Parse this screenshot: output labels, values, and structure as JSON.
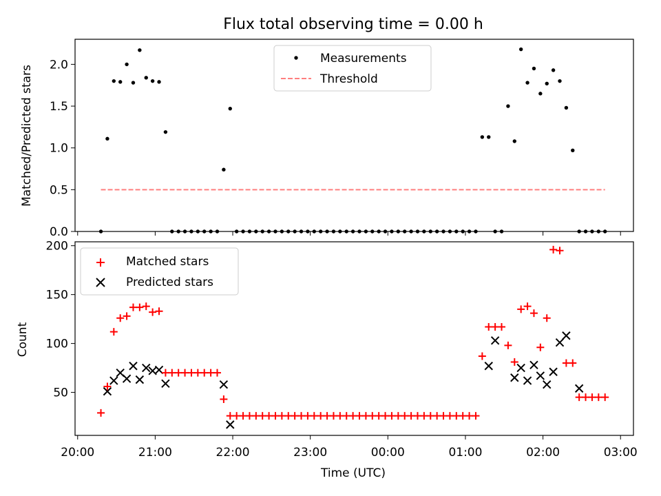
{
  "chart_data": [
    {
      "type": "scatter",
      "title": "Flux total observing time = 0.00 h",
      "xlabel": "",
      "ylabel": "Matched/Predicted stars",
      "ylim": [
        0,
        2.3
      ],
      "yticks": [
        0.0,
        0.5,
        1.0,
        1.5,
        2.0
      ],
      "ytick_labels": [
        "0.0",
        "0.5",
        "1.0",
        "1.5",
        "2.0"
      ],
      "legend_position": "top-center",
      "threshold": {
        "name": "Threshold",
        "value": 0.5,
        "x_start": "20:18",
        "x_end": "02:48",
        "color": "#ff7f7f"
      },
      "series": [
        {
          "name": "Measurements",
          "marker": "dot",
          "color": "#000000",
          "x": [
            "20:18",
            "20:23",
            "20:28",
            "20:33",
            "20:38",
            "20:43",
            "20:48",
            "20:53",
            "20:58",
            "21:03",
            "21:08",
            "21:13",
            "21:18",
            "21:23",
            "21:28",
            "21:33",
            "21:38",
            "21:43",
            "21:48",
            "21:53",
            "21:58",
            "22:03",
            "22:08",
            "22:13",
            "22:18",
            "22:23",
            "22:28",
            "22:33",
            "22:38",
            "22:43",
            "22:48",
            "22:53",
            "22:58",
            "23:03",
            "23:08",
            "23:13",
            "23:18",
            "23:23",
            "23:28",
            "23:33",
            "23:38",
            "23:43",
            "23:48",
            "23:53",
            "23:58",
            "00:03",
            "00:08",
            "00:13",
            "00:18",
            "00:23",
            "00:28",
            "00:33",
            "00:38",
            "00:43",
            "00:48",
            "00:53",
            "00:58",
            "01:03",
            "01:08",
            "01:13",
            "01:18",
            "01:23",
            "01:28",
            "01:33",
            "01:38",
            "01:43",
            "01:48",
            "01:53",
            "01:58",
            "02:03",
            "02:08",
            "02:13",
            "02:18",
            "02:23",
            "02:28",
            "02:33",
            "02:38",
            "02:43",
            "02:48"
          ],
          "y": [
            0.0,
            1.11,
            1.8,
            1.79,
            2.0,
            1.78,
            2.17,
            1.84,
            1.8,
            1.79,
            1.19,
            0.0,
            0.0,
            0.0,
            0.0,
            0.0,
            0.0,
            0.0,
            0.0,
            0.74,
            1.47,
            0.0,
            0.0,
            0.0,
            0.0,
            0.0,
            0.0,
            0.0,
            0.0,
            0.0,
            0.0,
            0.0,
            0.0,
            0.0,
            0.0,
            0.0,
            0.0,
            0.0,
            0.0,
            0.0,
            0.0,
            0.0,
            0.0,
            0.0,
            0.0,
            0.0,
            0.0,
            0.0,
            0.0,
            0.0,
            0.0,
            0.0,
            0.0,
            0.0,
            0.0,
            0.0,
            0.0,
            0.0,
            0.0,
            1.13,
            1.13,
            0.0,
            0.0,
            1.5,
            1.08,
            2.18,
            1.78,
            1.95,
            1.65,
            1.77,
            1.93,
            1.8,
            1.48,
            0.97,
            0.0,
            0.0,
            0.0,
            0.0,
            0.0
          ]
        }
      ]
    },
    {
      "type": "scatter",
      "title": "",
      "xlabel": "Time (UTC)",
      "ylabel": "Count",
      "ylim": [
        6,
        204
      ],
      "yticks": [
        50,
        100,
        150,
        200
      ],
      "ytick_labels": [
        "50",
        "100",
        "150",
        "200"
      ],
      "xlim": [
        "19:58",
        "03:10"
      ],
      "xticks": [
        "20:00",
        "21:00",
        "22:00",
        "23:00",
        "00:00",
        "01:00",
        "02:00",
        "03:00"
      ],
      "legend_position": "top-left",
      "series": [
        {
          "name": "Matched stars",
          "marker": "plus",
          "color": "#ff0000",
          "x": [
            "20:18",
            "20:23",
            "20:28",
            "20:33",
            "20:38",
            "20:43",
            "20:48",
            "20:53",
            "20:58",
            "21:03",
            "21:08",
            "21:13",
            "21:18",
            "21:23",
            "21:28",
            "21:33",
            "21:38",
            "21:43",
            "21:48",
            "21:53",
            "21:58",
            "22:03",
            "22:08",
            "22:13",
            "22:18",
            "22:23",
            "22:28",
            "22:33",
            "22:38",
            "22:43",
            "22:48",
            "22:53",
            "22:58",
            "23:03",
            "23:08",
            "23:13",
            "23:18",
            "23:23",
            "23:28",
            "23:33",
            "23:38",
            "23:43",
            "23:48",
            "23:53",
            "23:58",
            "00:03",
            "00:08",
            "00:13",
            "00:18",
            "00:23",
            "00:28",
            "00:33",
            "00:38",
            "00:43",
            "00:48",
            "00:53",
            "00:58",
            "01:03",
            "01:08",
            "01:13",
            "01:18",
            "01:23",
            "01:28",
            "01:33",
            "01:38",
            "01:43",
            "01:48",
            "01:53",
            "01:58",
            "02:03",
            "02:08",
            "02:13",
            "02:18",
            "02:23",
            "02:28",
            "02:33",
            "02:38",
            "02:43",
            "02:48"
          ],
          "y": [
            29,
            56,
            112,
            126,
            128,
            137,
            137,
            138,
            132,
            133,
            70,
            70,
            70,
            70,
            70,
            70,
            70,
            70,
            70,
            43,
            26,
            26,
            26,
            26,
            26,
            26,
            26,
            26,
            26,
            26,
            26,
            26,
            26,
            26,
            26,
            26,
            26,
            26,
            26,
            26,
            26,
            26,
            26,
            26,
            26,
            26,
            26,
            26,
            26,
            26,
            26,
            26,
            26,
            26,
            26,
            26,
            26,
            26,
            26,
            87,
            117,
            117,
            117,
            98,
            81,
            135,
            138,
            131,
            96,
            126,
            196,
            195,
            80,
            80,
            45,
            45,
            45,
            45,
            45
          ]
        },
        {
          "name": "Predicted stars",
          "marker": "x",
          "color": "#000000",
          "x": [
            "20:23",
            "20:28",
            "20:33",
            "20:38",
            "20:43",
            "20:48",
            "20:53",
            "20:58",
            "21:03",
            "21:08",
            "21:53",
            "21:58",
            "01:18",
            "01:23",
            "01:38",
            "01:43",
            "01:48",
            "01:53",
            "01:58",
            "02:03",
            "02:08",
            "02:13",
            "02:18",
            "02:28"
          ],
          "y": [
            51,
            62,
            70,
            64,
            77,
            63,
            75,
            72,
            73,
            59,
            58,
            17,
            77,
            103,
            65,
            75,
            62,
            78,
            67,
            58,
            71,
            101,
            108,
            54
          ]
        }
      ]
    }
  ]
}
